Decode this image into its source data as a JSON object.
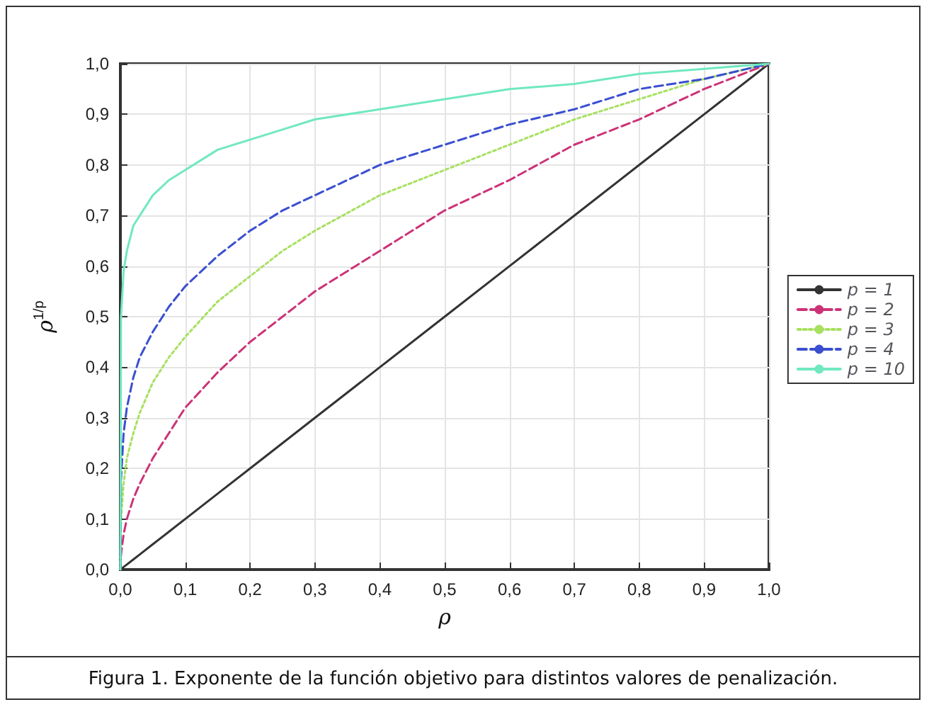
{
  "chart_data": {
    "type": "line",
    "xlabel": "ρ",
    "ylabel": "ρ$^{1/p}$",
    "annotations": [
      "Figura 1. Exponente de la función objetivo para distintos valores de penalización."
    ],
    "x": [
      0,
      0.001,
      0.005,
      0.01,
      0.02,
      0.03,
      0.05,
      0.075,
      0.1,
      0.15,
      0.2,
      0.25,
      0.3,
      0.4,
      0.5,
      0.6,
      0.7,
      0.8,
      0.9,
      1.0
    ],
    "series": [
      {
        "name": "p = 1",
        "color": "#333333",
        "line_style": "solid",
        "values": [
          0,
          0.001,
          0.005,
          0.01,
          0.02,
          0.03,
          0.05,
          0.075,
          0.1,
          0.15,
          0.2,
          0.25,
          0.3,
          0.4,
          0.5,
          0.6,
          0.7,
          0.8,
          0.9,
          1.0
        ]
      },
      {
        "name": "p = 2",
        "color": "#cc3377",
        "line_style": "dashed",
        "values": [
          0,
          0.03,
          0.07,
          0.1,
          0.14,
          0.17,
          0.22,
          0.27,
          0.32,
          0.39,
          0.45,
          0.5,
          0.55,
          0.63,
          0.71,
          0.77,
          0.84,
          0.89,
          0.95,
          1
        ]
      },
      {
        "name": "p = 3",
        "color": "#a8e060",
        "line_style": "dotted",
        "values": [
          0,
          0.1,
          0.17,
          0.22,
          0.27,
          0.31,
          0.37,
          0.42,
          0.46,
          0.53,
          0.58,
          0.63,
          0.67,
          0.74,
          0.79,
          0.84,
          0.89,
          0.93,
          0.97,
          1
        ]
      },
      {
        "name": "p = 4",
        "color": "#3a4fd0",
        "line_style": "dashed",
        "values": [
          0,
          0.18,
          0.27,
          0.32,
          0.38,
          0.42,
          0.47,
          0.52,
          0.56,
          0.62,
          0.67,
          0.71,
          0.74,
          0.8,
          0.84,
          0.88,
          0.91,
          0.95,
          0.97,
          1
        ]
      },
      {
        "name": "p = 10",
        "color": "#70e8c0",
        "line_style": "solid",
        "values": [
          0,
          0.5,
          0.59,
          0.63,
          0.68,
          0.7,
          0.74,
          0.77,
          0.79,
          0.83,
          0.85,
          0.87,
          0.89,
          0.91,
          0.93,
          0.95,
          0.96,
          0.98,
          0.99,
          1
        ]
      }
    ],
    "xlim": [
      0,
      1
    ],
    "ylim": [
      0,
      1
    ],
    "xticks": [
      {
        "value": 0,
        "label": "0,0"
      },
      {
        "value": 0.1,
        "label": "0,1"
      },
      {
        "value": 0.2,
        "label": "0,2"
      },
      {
        "value": 0.3,
        "label": "0,3"
      },
      {
        "value": 0.4,
        "label": "0,4"
      },
      {
        "value": 0.5,
        "label": "0,5"
      },
      {
        "value": 0.6,
        "label": "0,6"
      },
      {
        "value": 0.7,
        "label": "0,7"
      },
      {
        "value": 0.8,
        "label": "0,8"
      },
      {
        "value": 0.9,
        "label": "0,9"
      },
      {
        "value": 1,
        "label": "1,0"
      }
    ],
    "yticks": [
      {
        "value": 0,
        "label": "0,0"
      },
      {
        "value": 0.1,
        "label": "0,1"
      },
      {
        "value": 0.2,
        "label": "0,2"
      },
      {
        "value": 0.3,
        "label": "0,3"
      },
      {
        "value": 0.4,
        "label": "0,4"
      },
      {
        "value": 0.5,
        "label": "0,5"
      },
      {
        "value": 0.6,
        "label": "0,6"
      },
      {
        "value": 0.7,
        "label": "0,7"
      },
      {
        "value": 0.8,
        "label": "0,8"
      },
      {
        "value": 0.9,
        "label": "0,9"
      },
      {
        "value": 1,
        "label": "1,0"
      }
    ],
    "grid": true,
    "legend": "right",
    "marker": "none"
  }
}
